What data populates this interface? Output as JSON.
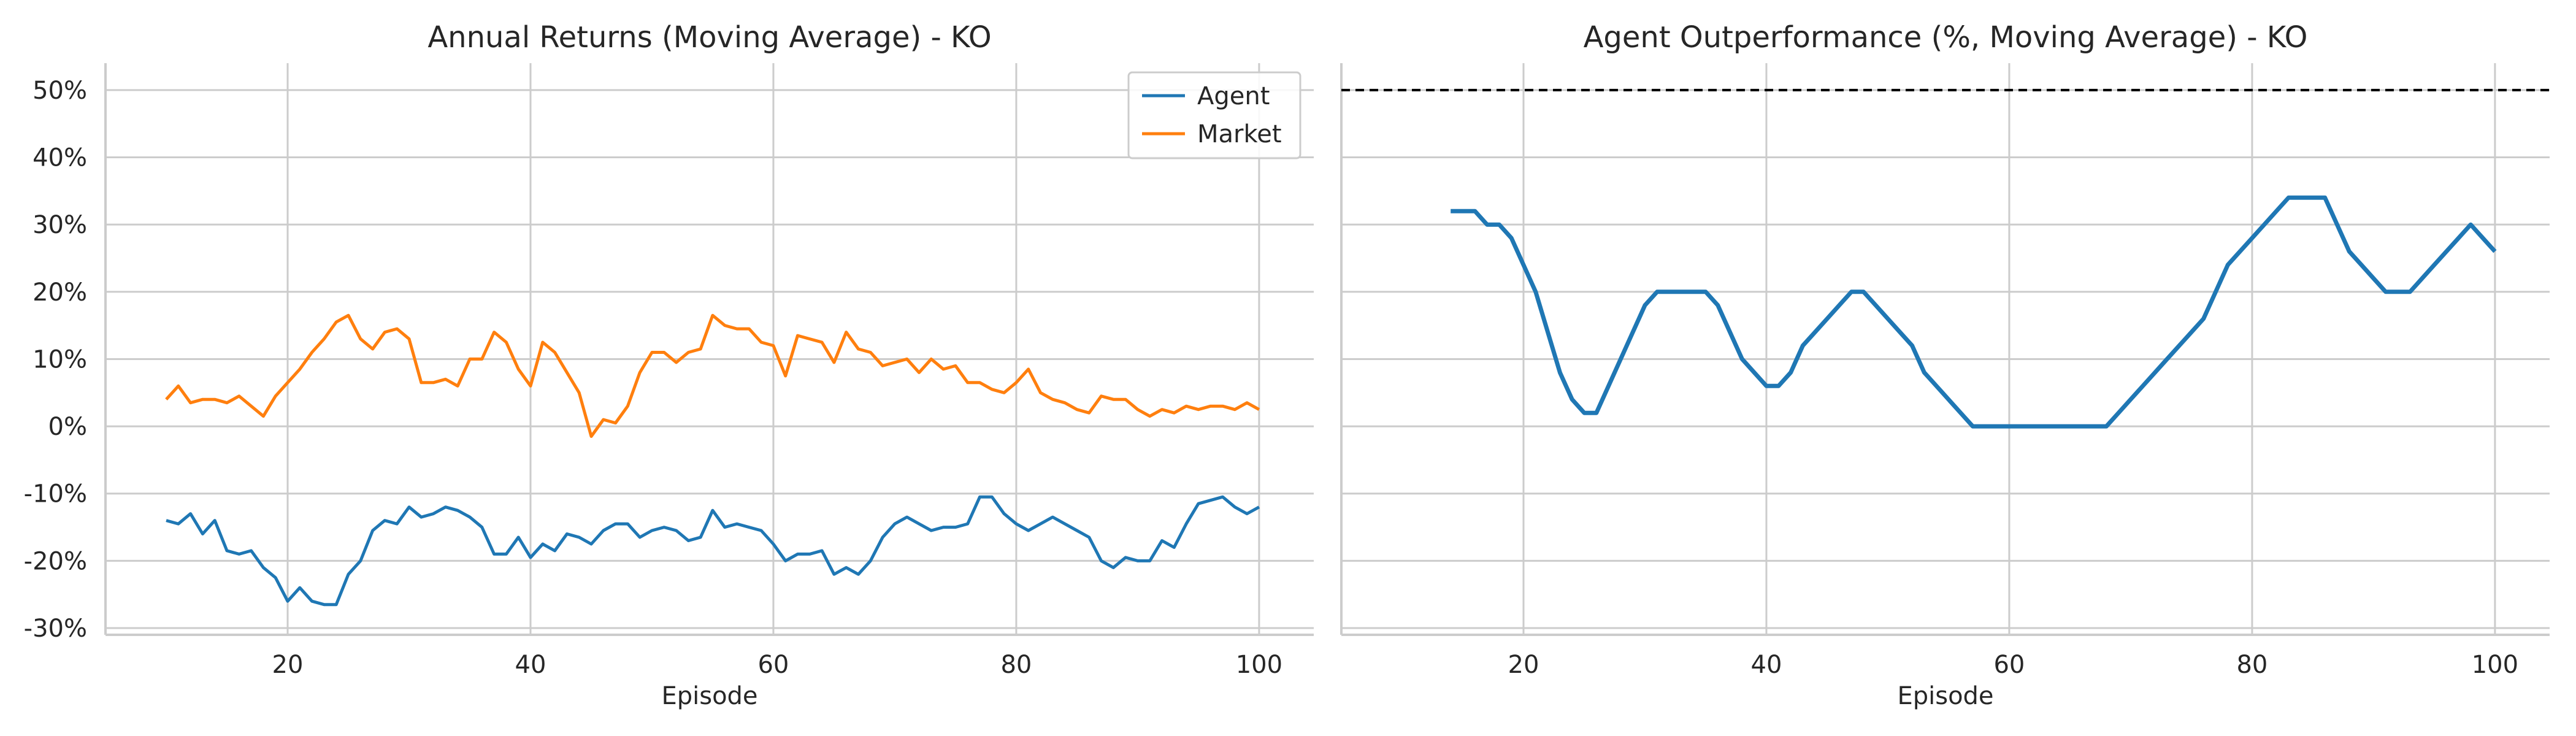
{
  "chart_data": [
    {
      "type": "line",
      "title": "Annual Returns (Moving Average) - KO",
      "xlabel": "Episode",
      "ylabel": "",
      "xlim": [
        5,
        104.5
      ],
      "ylim": [
        -0.31,
        0.54
      ],
      "xticks": [
        20,
        40,
        60,
        80,
        100
      ],
      "xtick_labels": [
        "20",
        "40",
        "60",
        "80",
        "100"
      ],
      "yticks": [
        -0.3,
        -0.2,
        -0.1,
        0.0,
        0.1,
        0.2,
        0.3,
        0.4,
        0.5
      ],
      "ytick_labels": [
        "-30%",
        "-20%",
        "-10%",
        "0%",
        "10%",
        "20%",
        "30%",
        "40%",
        "50%"
      ],
      "grid": true,
      "legend": "top-right",
      "x": [
        10,
        11,
        12,
        13,
        14,
        15,
        16,
        17,
        18,
        19,
        20,
        21,
        22,
        23,
        24,
        25,
        26,
        27,
        28,
        29,
        30,
        31,
        32,
        33,
        34,
        35,
        36,
        37,
        38,
        39,
        40,
        41,
        42,
        43,
        44,
        45,
        46,
        47,
        48,
        49,
        50,
        51,
        52,
        53,
        54,
        55,
        56,
        57,
        58,
        59,
        60,
        61,
        62,
        63,
        64,
        65,
        66,
        67,
        68,
        69,
        70,
        71,
        72,
        73,
        74,
        75,
        76,
        77,
        78,
        79,
        80,
        81,
        82,
        83,
        84,
        85,
        86,
        87,
        88,
        89,
        90,
        91,
        92,
        93,
        94,
        95,
        96,
        97,
        98,
        99,
        100
      ],
      "series": [
        {
          "name": "Agent",
          "color": "#1f77b4",
          "values": [
            -0.14,
            -0.145,
            -0.13,
            -0.16,
            -0.14,
            -0.185,
            -0.19,
            -0.185,
            -0.21,
            -0.225,
            -0.26,
            -0.24,
            -0.26,
            -0.265,
            -0.265,
            -0.22,
            -0.2,
            -0.155,
            -0.14,
            -0.145,
            -0.12,
            -0.135,
            -0.13,
            -0.12,
            -0.125,
            -0.135,
            -0.15,
            -0.19,
            -0.19,
            -0.165,
            -0.195,
            -0.175,
            -0.185,
            -0.16,
            -0.165,
            -0.175,
            -0.155,
            -0.145,
            -0.145,
            -0.165,
            -0.155,
            -0.15,
            -0.155,
            -0.17,
            -0.165,
            -0.125,
            -0.15,
            -0.145,
            -0.15,
            -0.155,
            -0.175,
            -0.2,
            -0.19,
            -0.19,
            -0.185,
            -0.22,
            -0.21,
            -0.22,
            -0.2,
            -0.165,
            -0.145,
            -0.135,
            -0.145,
            -0.155,
            -0.15,
            -0.15,
            -0.145,
            -0.105,
            -0.105,
            -0.13,
            -0.145,
            -0.155,
            -0.145,
            -0.135,
            -0.145,
            -0.155,
            -0.165,
            -0.2,
            -0.21,
            -0.195,
            -0.2,
            -0.2,
            -0.17,
            -0.18,
            -0.145,
            -0.115,
            -0.11,
            -0.105,
            -0.12,
            -0.13,
            -0.12
          ]
        },
        {
          "name": "Market",
          "color": "#ff7f0e",
          "values": [
            0.04,
            0.06,
            0.035,
            0.04,
            0.04,
            0.035,
            0.045,
            0.03,
            0.015,
            0.045,
            0.065,
            0.085,
            0.11,
            0.13,
            0.155,
            0.165,
            0.13,
            0.115,
            0.14,
            0.145,
            0.13,
            0.065,
            0.065,
            0.07,
            0.06,
            0.1,
            0.1,
            0.14,
            0.125,
            0.085,
            0.06,
            0.125,
            0.11,
            0.08,
            0.05,
            -0.015,
            0.01,
            0.005,
            0.03,
            0.08,
            0.11,
            0.11,
            0.095,
            0.11,
            0.115,
            0.165,
            0.15,
            0.145,
            0.145,
            0.125,
            0.12,
            0.075,
            0.135,
            0.13,
            0.125,
            0.095,
            0.14,
            0.115,
            0.11,
            0.09,
            0.095,
            0.1,
            0.08,
            0.1,
            0.085,
            0.09,
            0.065,
            0.065,
            0.055,
            0.05,
            0.065,
            0.085,
            0.05,
            0.04,
            0.035,
            0.025,
            0.02,
            0.045,
            0.04,
            0.04,
            0.025,
            0.015,
            0.025,
            0.02,
            0.03,
            0.025,
            0.03,
            0.03,
            0.025,
            0.035,
            0.025
          ]
        }
      ]
    },
    {
      "type": "line",
      "title": "Agent Outperformance (%, Moving Average) - KO",
      "xlabel": "Episode",
      "ylabel": "",
      "xlim": [
        5,
        104.5
      ],
      "ylim": [
        -0.31,
        0.54
      ],
      "xticks": [
        20,
        40,
        60,
        80,
        100
      ],
      "xtick_labels": [
        "20",
        "40",
        "60",
        "80",
        "100"
      ],
      "grid": true,
      "reference_line": {
        "y": 0.5,
        "style": "dashed",
        "color": "#000000"
      },
      "x": [
        14,
        15,
        16,
        17,
        18,
        19,
        20,
        21,
        22,
        23,
        24,
        25,
        26,
        27,
        28,
        29,
        30,
        31,
        32,
        33,
        34,
        35,
        36,
        37,
        38,
        39,
        40,
        41,
        42,
        43,
        44,
        45,
        46,
        47,
        48,
        49,
        50,
        51,
        52,
        53,
        54,
        55,
        56,
        57,
        58,
        59,
        60,
        61,
        62,
        63,
        64,
        65,
        66,
        67,
        68,
        69,
        70,
        71,
        72,
        73,
        74,
        75,
        76,
        77,
        78,
        79,
        80,
        81,
        82,
        83,
        84,
        85,
        86,
        87,
        88,
        89,
        90,
        91,
        92,
        93,
        94,
        95,
        96,
        97,
        98,
        99,
        100
      ],
      "series": [
        {
          "color": "#1f77b4",
          "values": [
            0.32,
            0.32,
            0.32,
            0.3,
            0.3,
            0.28,
            0.24,
            0.2,
            0.14,
            0.08,
            0.04,
            0.02,
            0.02,
            0.06,
            0.1,
            0.14,
            0.18,
            0.2,
            0.2,
            0.2,
            0.2,
            0.2,
            0.18,
            0.14,
            0.1,
            0.08,
            0.06,
            0.06,
            0.08,
            0.12,
            0.14,
            0.16,
            0.18,
            0.2,
            0.2,
            0.18,
            0.16,
            0.14,
            0.12,
            0.08,
            0.06,
            0.04,
            0.02,
            0.0,
            0.0,
            0.0,
            0.0,
            0.0,
            0.0,
            0.0,
            0.0,
            0.0,
            0.0,
            0.0,
            0.0,
            0.02,
            0.04,
            0.06,
            0.08,
            0.1,
            0.12,
            0.14,
            0.16,
            0.2,
            0.24,
            0.26,
            0.28,
            0.3,
            0.32,
            0.34,
            0.34,
            0.34,
            0.34,
            0.3,
            0.26,
            0.24,
            0.22,
            0.2,
            0.2,
            0.2,
            0.22,
            0.24,
            0.26,
            0.28,
            0.3,
            0.28,
            0.26
          ]
        }
      ]
    }
  ]
}
